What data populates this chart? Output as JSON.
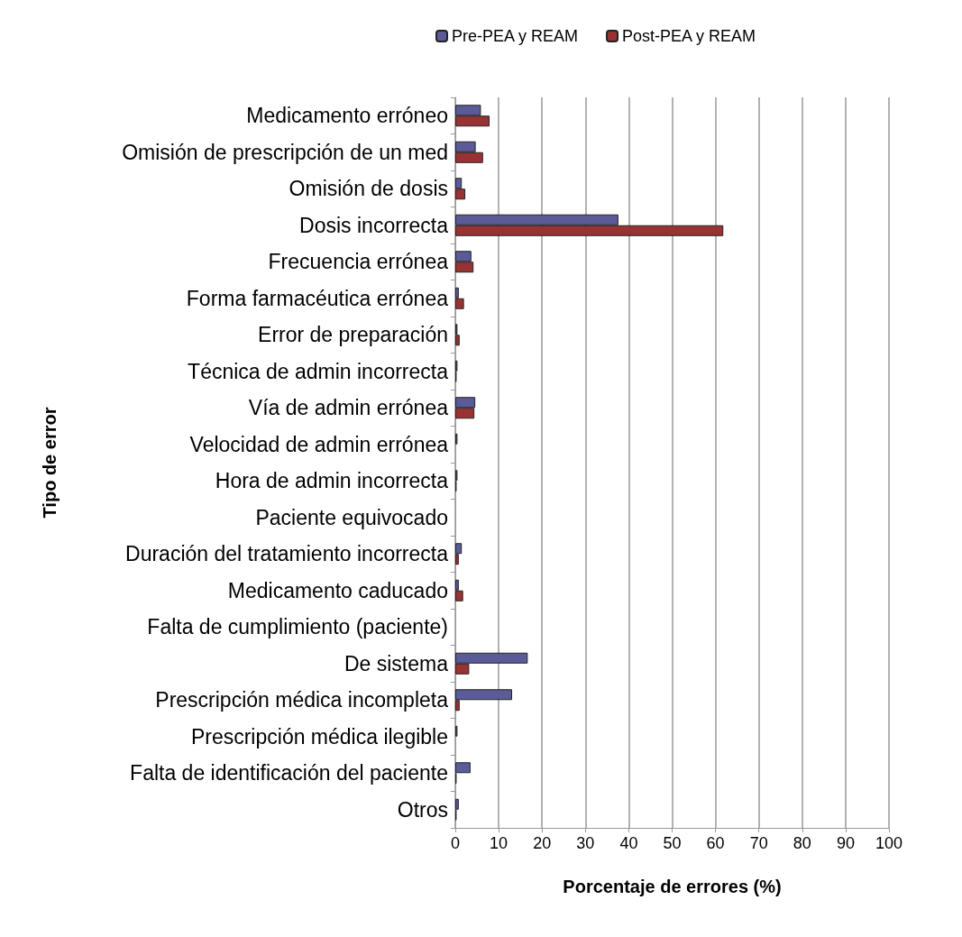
{
  "chart_data": {
    "type": "bar",
    "orientation": "horizontal",
    "xlabel": "Porcentaje de errores (%)",
    "ylabel": "Tipo de error",
    "categories": [
      "Medicamento erróneo",
      "Omisión de prescripción de un med",
      "Omisión de dosis",
      "Dosis incorrecta",
      "Frecuencia errónea",
      "Forma farmacéutica errónea",
      "Error de preparación",
      "Técnica de admin incorrecta",
      "Vía de admin errónea",
      "Velocidad de admin errónea",
      "Hora de admin incorrecta",
      "Paciente equivocado",
      "Duración del tratamiento incorrecta",
      "Medicamento caducado",
      "Falta de cumplimiento (paciente)",
      "De sistema",
      "Prescripción médica incompleta",
      "Prescripción médica ilegible",
      "Falta de identificación del paciente",
      "Otros"
    ],
    "series": [
      {
        "name": "Pre-PEA y REAM",
        "color": "#5b5b99",
        "values": [
          5.9,
          4.7,
          1.5,
          37.6,
          3.7,
          0.8,
          0.5,
          0.5,
          4.6,
          0.5,
          0.5,
          0,
          1.5,
          0.8,
          0,
          16.7,
          13.1,
          0.5,
          3.5,
          0.8
        ]
      },
      {
        "name": "Post-PEA y REAM",
        "color": "#993333",
        "values": [
          7.9,
          6.4,
          2.3,
          61.8,
          4.2,
          2.0,
          1.0,
          0.3,
          4.4,
          0,
          0.3,
          0,
          0.8,
          1.8,
          0,
          3.2,
          1.0,
          0,
          0.3,
          0.3
        ]
      }
    ],
    "xlim": [
      0,
      100
    ],
    "xticks": [
      0,
      10,
      20,
      30,
      40,
      50,
      60,
      70,
      80,
      90,
      100
    ],
    "grid": "x",
    "legend": "top"
  }
}
